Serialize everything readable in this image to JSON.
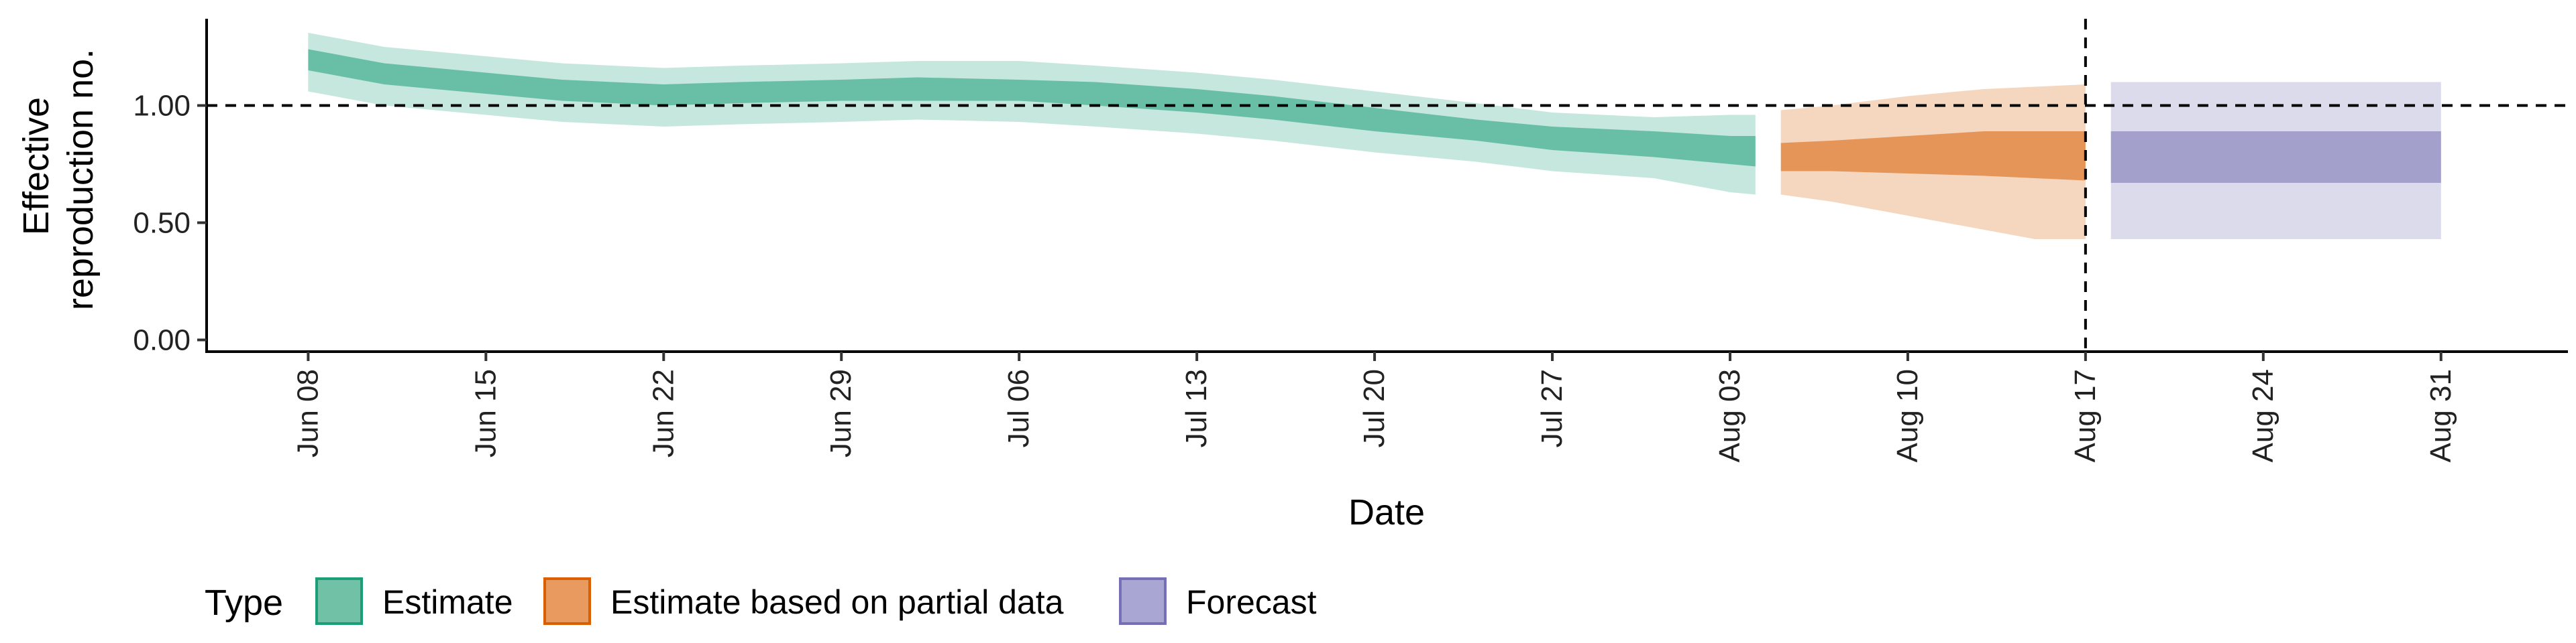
{
  "chart_data": {
    "type": "area",
    "xlabel": "Date",
    "ylabel_lines": [
      "Effective",
      "reproduction no."
    ],
    "x_ticks": [
      "Jun 08",
      "Jun 15",
      "Jun 22",
      "Jun 29",
      "Jul 06",
      "Jul 13",
      "Jul 20",
      "Jul 27",
      "Aug 03",
      "Aug 10",
      "Aug 17",
      "Aug 24",
      "Aug 31"
    ],
    "x_range_days": [
      "2020-06-04",
      "2020-09-05"
    ],
    "y_ticks": [
      "0.00",
      "0.50",
      "1.00"
    ],
    "ylim": [
      -0.05,
      1.37
    ],
    "reference_line_y": 1.0,
    "reference_line_x": "2020-08-17",
    "legend": {
      "title": "Type",
      "position": "bottom-left",
      "entries": [
        {
          "label": "Estimate",
          "color": "#1B9E77"
        },
        {
          "label": "Estimate based on partial data",
          "color": "#D95F02"
        },
        {
          "label": "Forecast",
          "color": "#7570B3"
        }
      ]
    },
    "series": [
      {
        "name": "Estimate",
        "color": "#1B9E77",
        "x": [
          "2020-06-08",
          "2020-06-11",
          "2020-06-15",
          "2020-06-18",
          "2020-06-22",
          "2020-06-25",
          "2020-06-29",
          "2020-07-02",
          "2020-07-06",
          "2020-07-09",
          "2020-07-13",
          "2020-07-16",
          "2020-07-20",
          "2020-07-24",
          "2020-07-27",
          "2020-07-31",
          "2020-08-03",
          "2020-08-04"
        ],
        "median": [
          1.19,
          1.14,
          1.1,
          1.07,
          1.05,
          1.06,
          1.07,
          1.07,
          1.07,
          1.05,
          1.02,
          0.99,
          0.94,
          0.9,
          0.86,
          0.83,
          0.81,
          0.81
        ],
        "inner_low": [
          1.15,
          1.09,
          1.05,
          1.02,
          1.0,
          1.01,
          1.02,
          1.02,
          1.02,
          1.0,
          0.97,
          0.94,
          0.89,
          0.85,
          0.81,
          0.78,
          0.75,
          0.74
        ],
        "inner_high": [
          1.24,
          1.18,
          1.14,
          1.11,
          1.09,
          1.1,
          1.11,
          1.12,
          1.11,
          1.1,
          1.07,
          1.04,
          0.99,
          0.94,
          0.91,
          0.89,
          0.87,
          0.87
        ],
        "outer_low": [
          1.06,
          1.0,
          0.96,
          0.93,
          0.91,
          0.92,
          0.93,
          0.94,
          0.93,
          0.91,
          0.88,
          0.85,
          0.8,
          0.76,
          0.72,
          0.69,
          0.63,
          0.62
        ],
        "outer_high": [
          1.31,
          1.25,
          1.21,
          1.18,
          1.16,
          1.17,
          1.18,
          1.19,
          1.19,
          1.17,
          1.14,
          1.11,
          1.06,
          1.01,
          0.97,
          0.95,
          0.96,
          0.96
        ]
      },
      {
        "name": "Estimate based on partial data",
        "color": "#D95F02",
        "x": [
          "2020-08-05",
          "2020-08-07",
          "2020-08-10",
          "2020-08-13",
          "2020-08-15",
          "2020-08-17"
        ],
        "median": [
          0.77,
          0.77,
          0.78,
          0.79,
          0.79,
          0.79
        ],
        "inner_low": [
          0.72,
          0.72,
          0.71,
          0.7,
          0.69,
          0.68
        ],
        "inner_high": [
          0.84,
          0.85,
          0.87,
          0.89,
          0.89,
          0.89
        ],
        "outer_low": [
          0.62,
          0.59,
          0.53,
          0.47,
          0.43,
          0.43
        ],
        "outer_high": [
          0.98,
          1.0,
          1.04,
          1.07,
          1.08,
          1.09
        ]
      },
      {
        "name": "Forecast",
        "color": "#7570B3",
        "x": [
          "2020-08-18",
          "2020-08-31"
        ],
        "median": [
          0.78,
          0.78
        ],
        "inner_low": [
          0.67,
          0.67
        ],
        "inner_high": [
          0.89,
          0.89
        ],
        "outer_low": [
          0.43,
          0.43
        ],
        "outer_high": [
          1.1,
          1.1
        ]
      }
    ]
  }
}
